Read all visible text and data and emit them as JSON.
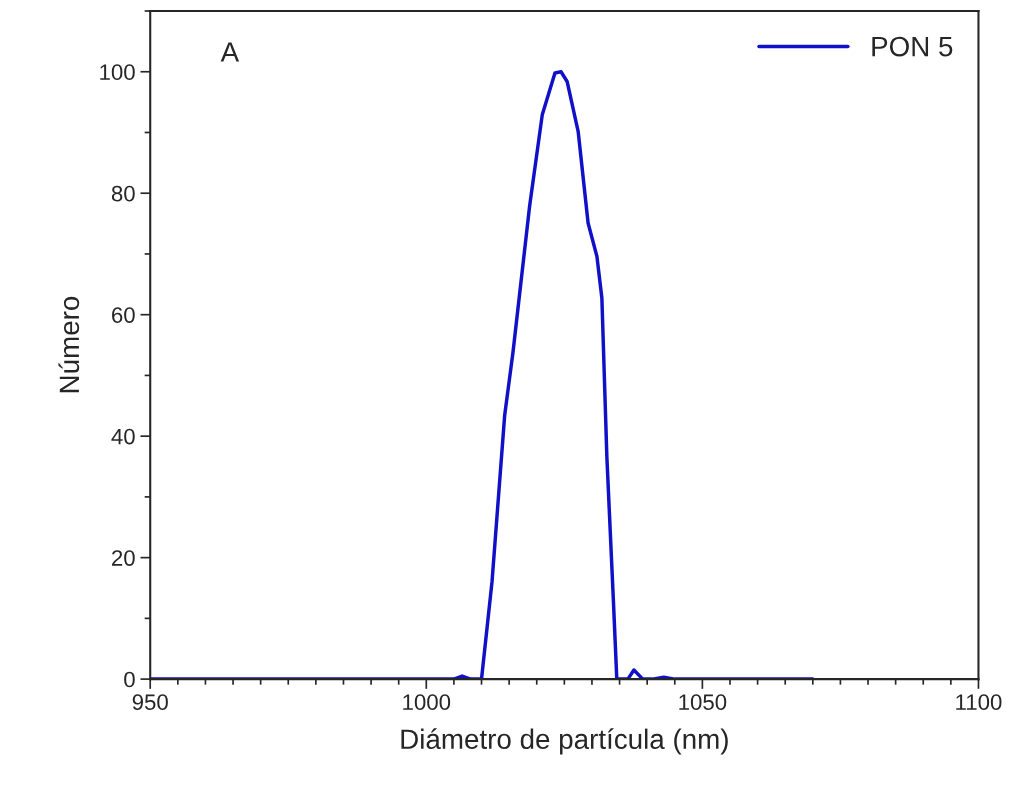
{
  "chart_data": {
    "type": "line",
    "xlabel": "Diámetro de partícula (nm)",
    "ylabel": "Número",
    "annotations": [
      "A"
    ],
    "xlim": [
      950,
      1100
    ],
    "xticks": [
      950,
      1000,
      1050,
      1100
    ],
    "ylim": [
      0,
      110
    ],
    "yticks": [
      0,
      20,
      40,
      60,
      80,
      100
    ],
    "legend": "top right",
    "grid": false,
    "marker": "none",
    "line_style": "solid",
    "series": [
      {
        "name": "PON 5",
        "color": "#1010c8",
        "x": [
          950,
          1000,
          1005,
          1006.5,
          1008,
          1010,
          1011.9,
          1014.2,
          1015.7,
          1018.7,
          1021,
          1023.3,
          1024.4,
          1025.5,
          1027.5,
          1029.3,
          1030.9,
          1031.8,
          1032.7,
          1033.9,
          1034.5,
          1036.5,
          1037.6,
          1039.2,
          1041,
          1043,
          1045,
          1070
        ],
        "values": [
          0,
          0,
          0,
          0.5,
          0,
          0,
          16,
          43.5,
          53.8,
          77.8,
          92.9,
          99.8,
          100,
          98.4,
          90.2,
          75.1,
          69.6,
          62.7,
          36.6,
          12.6,
          0,
          0,
          1.5,
          0,
          0,
          0.3,
          0,
          0
        ]
      }
    ]
  }
}
